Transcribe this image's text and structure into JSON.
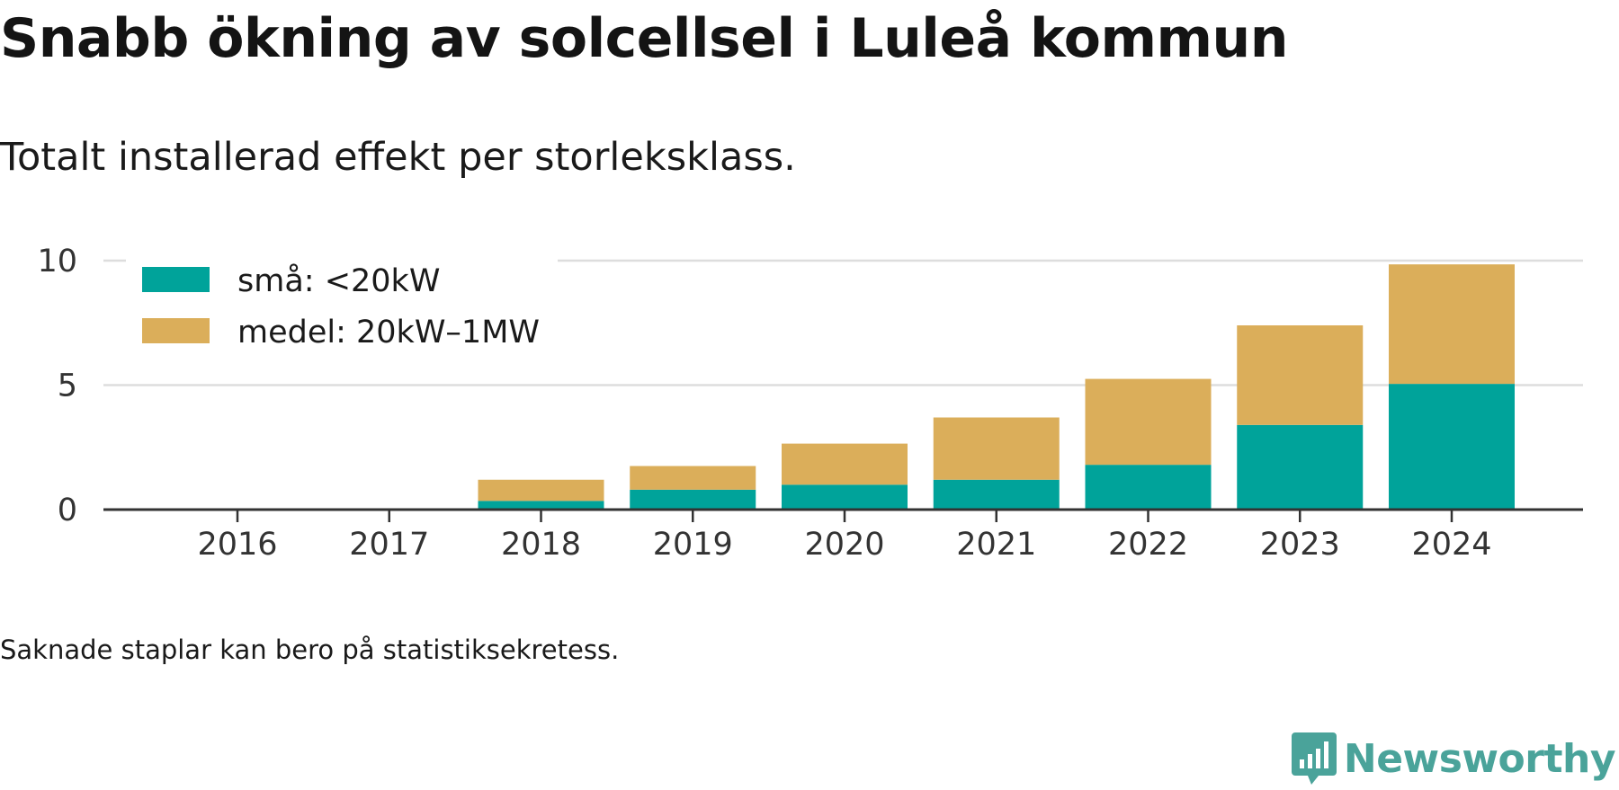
{
  "title": "Snabb ökning av solcellsel i Luleå kommun",
  "subtitle": "Totalt installerad effekt per storleksklass.",
  "note": "Saknade staplar kan bero på statistiksekretess.",
  "brand": {
    "name": "Newsworthy",
    "icon": "newsworthy-logo-icon",
    "color": "#4aa39a"
  },
  "chart_data": {
    "type": "bar",
    "stacked": true,
    "categories": [
      "2016",
      "2017",
      "2018",
      "2019",
      "2020",
      "2021",
      "2022",
      "2023",
      "2024"
    ],
    "series": [
      {
        "name": "små: <20kW",
        "color": "#00a39a",
        "values": [
          0,
          0,
          0.35,
          0.8,
          1.0,
          1.2,
          1.8,
          3.4,
          5.05
        ]
      },
      {
        "name": "medel: 20kW–1MW",
        "color": "#dbae5a",
        "values": [
          0,
          0,
          0.85,
          0.95,
          1.65,
          2.5,
          3.45,
          4.0,
          4.8
        ]
      }
    ],
    "y_ticks": [
      "0",
      "5",
      "10"
    ],
    "ylim": [
      0,
      10.5
    ],
    "xlabel": "",
    "ylabel": "",
    "grid": true,
    "legend_position": "top-left"
  }
}
